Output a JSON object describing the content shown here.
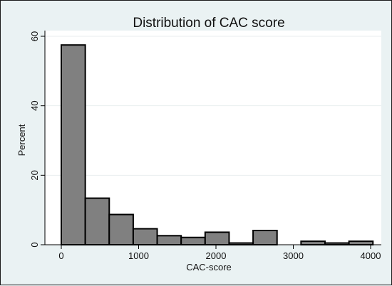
{
  "chart_data": {
    "type": "bar",
    "title": "Distribution of CAC score",
    "xlabel": "CAC-score",
    "ylabel": "Percent",
    "xlim": [
      0,
      4000
    ],
    "ylim": [
      0,
      60
    ],
    "x_ticks": [
      0,
      1000,
      2000,
      3000,
      4000
    ],
    "y_ticks": [
      0,
      20,
      40,
      60
    ],
    "grid": true,
    "bins": [
      {
        "start": 0,
        "end": 310,
        "value": 57.5
      },
      {
        "start": 310,
        "end": 620,
        "value": 13.4
      },
      {
        "start": 620,
        "end": 930,
        "value": 8.7
      },
      {
        "start": 930,
        "end": 1240,
        "value": 4.6
      },
      {
        "start": 1240,
        "end": 1550,
        "value": 2.6
      },
      {
        "start": 1550,
        "end": 1860,
        "value": 2.1
      },
      {
        "start": 1860,
        "end": 2170,
        "value": 3.6
      },
      {
        "start": 2170,
        "end": 2480,
        "value": 0.5
      },
      {
        "start": 2480,
        "end": 2790,
        "value": 4.1
      },
      {
        "start": 2790,
        "end": 3100,
        "value": 0
      },
      {
        "start": 3100,
        "end": 3410,
        "value": 1.0
      },
      {
        "start": 3410,
        "end": 3720,
        "value": 0.5
      },
      {
        "start": 3720,
        "end": 4030,
        "value": 1.0
      }
    ],
    "bar_color": "#808080"
  }
}
